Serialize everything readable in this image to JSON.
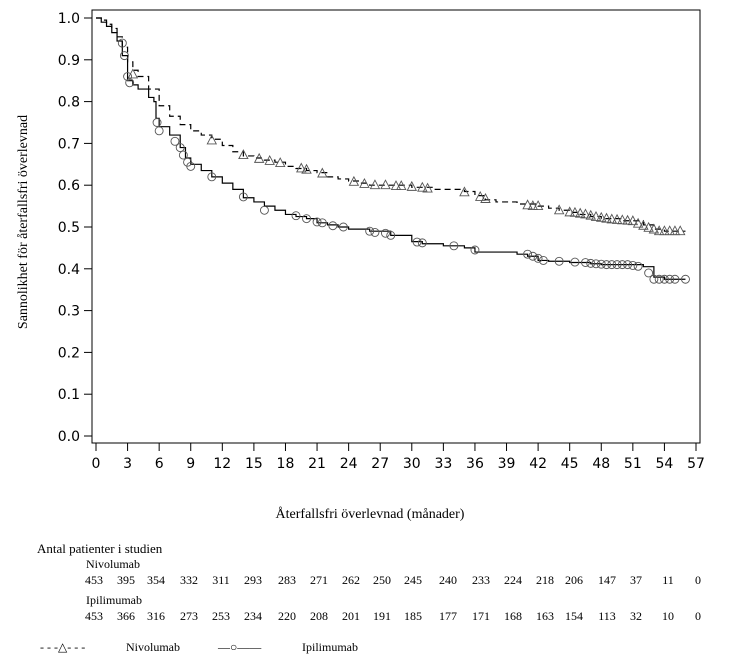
{
  "chart_data": {
    "type": "line",
    "subtype": "kaplan-meier",
    "xlabel": "Återfallsfri överlevnad (månader)",
    "ylabel": "Sannolikhet för återfallsfri överlevnad",
    "xlim": [
      0,
      57
    ],
    "ylim": [
      0.0,
      1.0
    ],
    "xticks": [
      "0",
      "3",
      "6",
      "9",
      "12",
      "15",
      "18",
      "21",
      "24",
      "27",
      "30",
      "33",
      "36",
      "39",
      "42",
      "45",
      "48",
      "51",
      "54",
      "57"
    ],
    "yticks": [
      "0.0",
      "0.1",
      "0.2",
      "0.3",
      "0.4",
      "0.5",
      "0.6",
      "0.7",
      "0.8",
      "0.9",
      "1.0"
    ],
    "series": [
      {
        "name": "Nivolumab",
        "line": "dashed",
        "marker": "triangle",
        "points": [
          [
            0,
            1.0
          ],
          [
            0.5,
            0.995
          ],
          [
            1,
            0.985
          ],
          [
            1.5,
            0.975
          ],
          [
            2,
            0.955
          ],
          [
            2.5,
            0.93
          ],
          [
            3,
            0.895
          ],
          [
            3.5,
            0.875
          ],
          [
            4,
            0.86
          ],
          [
            5,
            0.83
          ],
          [
            6,
            0.79
          ],
          [
            7,
            0.765
          ],
          [
            8,
            0.745
          ],
          [
            9,
            0.73
          ],
          [
            10,
            0.72
          ],
          [
            11,
            0.71
          ],
          [
            12,
            0.695
          ],
          [
            13,
            0.68
          ],
          [
            14,
            0.67
          ],
          [
            15,
            0.665
          ],
          [
            16,
            0.66
          ],
          [
            17,
            0.655
          ],
          [
            18,
            0.645
          ],
          [
            19,
            0.64
          ],
          [
            20,
            0.635
          ],
          [
            21,
            0.63
          ],
          [
            22,
            0.62
          ],
          [
            23,
            0.615
          ],
          [
            24,
            0.61
          ],
          [
            25,
            0.605
          ],
          [
            26,
            0.6
          ],
          [
            28,
            0.6
          ],
          [
            30,
            0.595
          ],
          [
            32,
            0.59
          ],
          [
            34,
            0.59
          ],
          [
            35,
            0.585
          ],
          [
            36,
            0.575
          ],
          [
            37,
            0.565
          ],
          [
            38,
            0.56
          ],
          [
            40,
            0.555
          ],
          [
            42,
            0.55
          ],
          [
            43,
            0.545
          ],
          [
            44,
            0.54
          ],
          [
            45,
            0.535
          ],
          [
            46,
            0.53
          ],
          [
            47,
            0.525
          ],
          [
            48,
            0.52
          ],
          [
            50,
            0.515
          ],
          [
            51,
            0.515
          ],
          [
            52,
            0.505
          ],
          [
            53,
            0.495
          ],
          [
            54,
            0.49
          ],
          [
            55,
            0.49
          ],
          [
            56,
            0.49
          ]
        ],
        "censored": [
          [
            3.5,
            0.865
          ],
          [
            11,
            0.707
          ],
          [
            14,
            0.672
          ],
          [
            15.5,
            0.663
          ],
          [
            16.5,
            0.658
          ],
          [
            17.5,
            0.653
          ],
          [
            19.5,
            0.64
          ],
          [
            20,
            0.637
          ],
          [
            21.5,
            0.628
          ],
          [
            24.5,
            0.608
          ],
          [
            25.5,
            0.603
          ],
          [
            26.5,
            0.6
          ],
          [
            27.5,
            0.6
          ],
          [
            28.5,
            0.598
          ],
          [
            29,
            0.598
          ],
          [
            30,
            0.596
          ],
          [
            31,
            0.594
          ],
          [
            31.5,
            0.592
          ],
          [
            35,
            0.583
          ],
          [
            36.5,
            0.572
          ],
          [
            37,
            0.567
          ],
          [
            41,
            0.552
          ],
          [
            41.5,
            0.55
          ],
          [
            42,
            0.55
          ],
          [
            44,
            0.54
          ],
          [
            45,
            0.535
          ],
          [
            45.5,
            0.534
          ],
          [
            46,
            0.532
          ],
          [
            46.5,
            0.53
          ],
          [
            47,
            0.527
          ],
          [
            47.5,
            0.524
          ],
          [
            48,
            0.522
          ],
          [
            48.5,
            0.52
          ],
          [
            49,
            0.518
          ],
          [
            49.5,
            0.517
          ],
          [
            50,
            0.516
          ],
          [
            50.5,
            0.515
          ],
          [
            51,
            0.514
          ],
          [
            51.5,
            0.508
          ],
          [
            52,
            0.503
          ],
          [
            52.5,
            0.498
          ],
          [
            53,
            0.494
          ],
          [
            53.5,
            0.49
          ],
          [
            54,
            0.49
          ],
          [
            54.5,
            0.49
          ],
          [
            55,
            0.49
          ],
          [
            55.5,
            0.49
          ]
        ]
      },
      {
        "name": "Ipilimumab",
        "line": "solid",
        "marker": "circle",
        "points": [
          [
            0,
            1.0
          ],
          [
            0.5,
            0.99
          ],
          [
            1,
            0.98
          ],
          [
            1.5,
            0.965
          ],
          [
            2,
            0.945
          ],
          [
            2.5,
            0.91
          ],
          [
            3,
            0.85
          ],
          [
            3.5,
            0.84
          ],
          [
            4,
            0.83
          ],
          [
            5,
            0.81
          ],
          [
            5.5,
            0.8
          ],
          [
            5.7,
            0.76
          ],
          [
            6,
            0.74
          ],
          [
            7,
            0.72
          ],
          [
            8,
            0.69
          ],
          [
            8.5,
            0.665
          ],
          [
            9,
            0.65
          ],
          [
            10,
            0.635
          ],
          [
            11,
            0.62
          ],
          [
            12,
            0.605
          ],
          [
            13,
            0.59
          ],
          [
            14,
            0.57
          ],
          [
            15,
            0.56
          ],
          [
            16,
            0.55
          ],
          [
            17,
            0.54
          ],
          [
            18,
            0.53
          ],
          [
            19,
            0.525
          ],
          [
            20,
            0.52
          ],
          [
            21,
            0.51
          ],
          [
            22,
            0.505
          ],
          [
            23,
            0.5
          ],
          [
            24,
            0.495
          ],
          [
            26,
            0.49
          ],
          [
            28,
            0.48
          ],
          [
            30,
            0.465
          ],
          [
            31,
            0.46
          ],
          [
            33,
            0.455
          ],
          [
            35,
            0.45
          ],
          [
            36,
            0.44
          ],
          [
            38,
            0.44
          ],
          [
            40,
            0.435
          ],
          [
            41,
            0.43
          ],
          [
            42,
            0.42
          ],
          [
            43,
            0.418
          ],
          [
            45,
            0.415
          ],
          [
            47,
            0.412
          ],
          [
            48,
            0.41
          ],
          [
            50,
            0.41
          ],
          [
            52,
            0.405
          ],
          [
            53,
            0.38
          ],
          [
            54,
            0.375
          ],
          [
            55,
            0.375
          ],
          [
            56,
            0.375
          ]
        ],
        "censored": [
          [
            2.5,
            0.94
          ],
          [
            2.7,
            0.91
          ],
          [
            3,
            0.86
          ],
          [
            3.2,
            0.845
          ],
          [
            5.8,
            0.75
          ],
          [
            6,
            0.73
          ],
          [
            7.5,
            0.705
          ],
          [
            8,
            0.69
          ],
          [
            8.3,
            0.672
          ],
          [
            8.7,
            0.655
          ],
          [
            9,
            0.645
          ],
          [
            11,
            0.62
          ],
          [
            14,
            0.572
          ],
          [
            16,
            0.54
          ],
          [
            19,
            0.527
          ],
          [
            20,
            0.52
          ],
          [
            21,
            0.512
          ],
          [
            21.5,
            0.51
          ],
          [
            22.5,
            0.503
          ],
          [
            23.5,
            0.5
          ],
          [
            26,
            0.49
          ],
          [
            26.5,
            0.487
          ],
          [
            27.5,
            0.485
          ],
          [
            28,
            0.48
          ],
          [
            30.5,
            0.464
          ],
          [
            31,
            0.462
          ],
          [
            34,
            0.455
          ],
          [
            36,
            0.445
          ],
          [
            41,
            0.435
          ],
          [
            41.5,
            0.43
          ],
          [
            42,
            0.425
          ],
          [
            42.5,
            0.42
          ],
          [
            44,
            0.418
          ],
          [
            45.5,
            0.416
          ],
          [
            46.5,
            0.415
          ],
          [
            47,
            0.413
          ],
          [
            47.5,
            0.412
          ],
          [
            48,
            0.411
          ],
          [
            48.5,
            0.41
          ],
          [
            49,
            0.41
          ],
          [
            49.5,
            0.41
          ],
          [
            50,
            0.41
          ],
          [
            50.5,
            0.41
          ],
          [
            51,
            0.408
          ],
          [
            51.5,
            0.406
          ],
          [
            52.5,
            0.39
          ],
          [
            53,
            0.375
          ],
          [
            53.5,
            0.375
          ],
          [
            54,
            0.375
          ],
          [
            54.5,
            0.375
          ],
          [
            55,
            0.375
          ],
          [
            56,
            0.375
          ]
        ]
      }
    ]
  },
  "risk_table": {
    "title": "Antal patienter i studien",
    "time_points": [
      0,
      3,
      6,
      9,
      12,
      15,
      18,
      21,
      24,
      27,
      30,
      33,
      36,
      39,
      42,
      45,
      48,
      51,
      54,
      57
    ],
    "groups": [
      {
        "name": "Nivolumab",
        "counts": [
          "453",
          "395",
          "354",
          "332",
          "311",
          "293",
          "283",
          "271",
          "262",
          "250",
          "245",
          "240",
          "233",
          "224",
          "218",
          "206",
          "147",
          "37",
          "11",
          "0"
        ]
      },
      {
        "name": "Ipilimumab",
        "counts": [
          "453",
          "366",
          "316",
          "273",
          "253",
          "234",
          "220",
          "208",
          "201",
          "191",
          "185",
          "177",
          "171",
          "168",
          "163",
          "154",
          "113",
          "32",
          "10",
          "0"
        ]
      }
    ]
  },
  "legend": {
    "items": [
      {
        "label": "Nivolumab",
        "symbol_text": "- - -△- - -"
      },
      {
        "label": "Ipilimumab",
        "symbol_text": "—○——"
      }
    ]
  }
}
